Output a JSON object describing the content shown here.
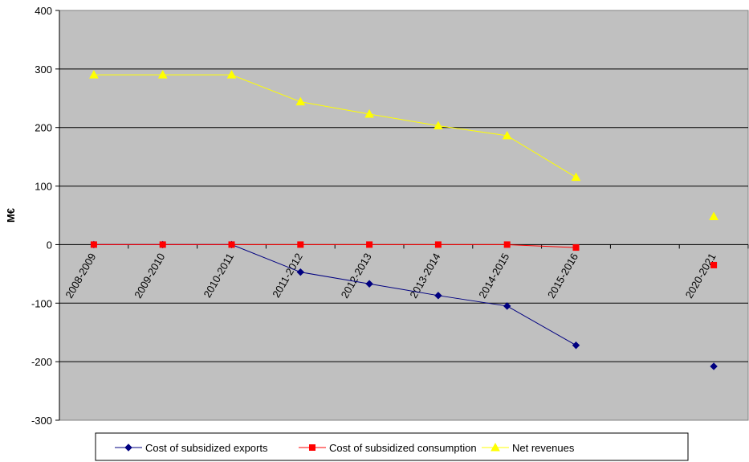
{
  "chart_data": {
    "type": "line",
    "title": "",
    "xlabel": "",
    "ylabel": "M€",
    "ylim": [
      -300,
      400
    ],
    "yticks": [
      -300,
      -200,
      -100,
      0,
      100,
      200,
      300,
      400
    ],
    "grid": true,
    "legend_position": "bottom",
    "categories": [
      "2008-2009",
      "2009-2010",
      "2010-2011",
      "2011-2012",
      "2012-2013",
      "2013-2014",
      "2014-2015",
      "2015-2016",
      "",
      "2020-2021"
    ],
    "series": [
      {
        "name": "Cost of subsidized exports",
        "color": "#000080",
        "marker": "diamond",
        "values": [
          0,
          0,
          0,
          -47,
          -67,
          -87,
          -105,
          -172,
          null,
          -208
        ]
      },
      {
        "name": "Cost of subsidized consumption",
        "color": "#ff0000",
        "marker": "square",
        "values": [
          0,
          0,
          0,
          0,
          0,
          0,
          0,
          -5,
          null,
          -35
        ]
      },
      {
        "name": "Net revenues",
        "color": "#ffff00",
        "marker": "triangle",
        "values": [
          290,
          290,
          290,
          244,
          223,
          203,
          186,
          115,
          null,
          48
        ]
      }
    ]
  }
}
